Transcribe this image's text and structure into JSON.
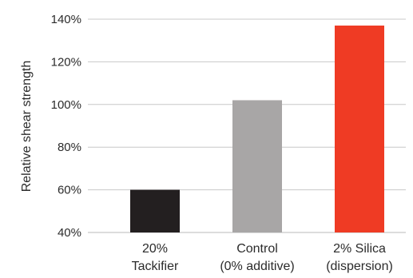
{
  "chart_data": {
    "type": "bar",
    "ylabel": "Relative shear strength",
    "xlabel": "",
    "title": "",
    "ylim": [
      40,
      140
    ],
    "yticks": [
      40,
      60,
      80,
      100,
      120,
      140
    ],
    "ytick_labels": [
      "40%",
      "60%",
      "80%",
      "100%",
      "120%",
      "140%"
    ],
    "grid": true,
    "categories": [
      [
        "20%",
        "Tackifier"
      ],
      [
        "Control",
        "(0% additive)"
      ],
      [
        "2% Silica",
        "(dispersion)"
      ]
    ],
    "values": [
      60,
      102,
      137
    ],
    "colors": [
      "#231f20",
      "#a8a6a6",
      "#ef3b24"
    ]
  }
}
